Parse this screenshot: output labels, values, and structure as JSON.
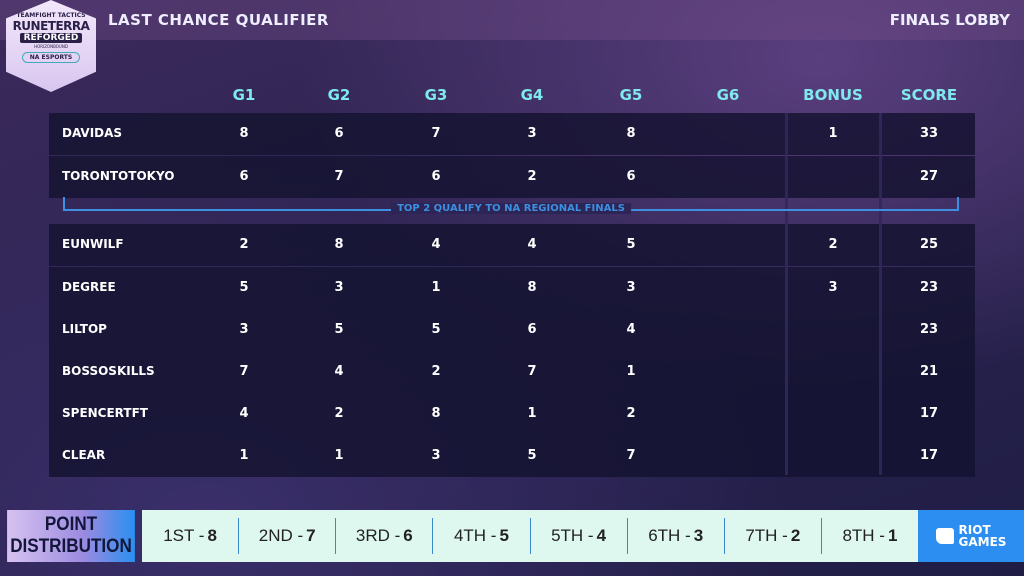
{
  "logo": {
    "line1": "TEAMFIGHT TACTICS",
    "line2": "RUNETERRA",
    "line3": "REFORGED",
    "line4": "HORIZONBOUND",
    "line5": "NA ESPORTS"
  },
  "header": {
    "title": "LAST CHANCE QUALIFIER",
    "lobby": "FINALS LOBBY"
  },
  "columns": [
    "G1",
    "G2",
    "G3",
    "G4",
    "G5",
    "G6",
    "BONUS",
    "SCORE"
  ],
  "rows": [
    {
      "name": "DAVIDAS",
      "g": [
        "8",
        "6",
        "7",
        "3",
        "8",
        ""
      ],
      "bonus": "1",
      "score": "33"
    },
    {
      "name": "TORONTOTOKYO",
      "g": [
        "6",
        "7",
        "6",
        "2",
        "6",
        ""
      ],
      "bonus": "",
      "score": "27"
    },
    {
      "name": "EUNWILF",
      "g": [
        "2",
        "8",
        "4",
        "4",
        "5",
        ""
      ],
      "bonus": "2",
      "score": "25"
    },
    {
      "name": "DEGREE",
      "g": [
        "5",
        "3",
        "1",
        "8",
        "3",
        ""
      ],
      "bonus": "3",
      "score": "23"
    },
    {
      "name": "LILTOP",
      "g": [
        "3",
        "5",
        "5",
        "6",
        "4",
        ""
      ],
      "bonus": "",
      "score": "23"
    },
    {
      "name": "BOSSOSKILLS",
      "g": [
        "7",
        "4",
        "2",
        "7",
        "1",
        ""
      ],
      "bonus": "",
      "score": "21"
    },
    {
      "name": "SPENCERTFT",
      "g": [
        "4",
        "2",
        "8",
        "1",
        "2",
        ""
      ],
      "bonus": "",
      "score": "17"
    },
    {
      "name": "CLEAR",
      "g": [
        "1",
        "1",
        "3",
        "5",
        "7",
        ""
      ],
      "bonus": "",
      "score": "17"
    }
  ],
  "qualify_text": "TOP 2 QUALIFY TO NA REGIONAL FINALS",
  "points": {
    "title_line1": "POINT",
    "title_line2": "DISTRIBUTION",
    "items": [
      {
        "place": "1ST -",
        "pts": "8"
      },
      {
        "place": "2ND -",
        "pts": "7"
      },
      {
        "place": "3RD -",
        "pts": "6"
      },
      {
        "place": "4TH -",
        "pts": "5"
      },
      {
        "place": "5TH -",
        "pts": "4"
      },
      {
        "place": "6TH -",
        "pts": "3"
      },
      {
        "place": "7TH -",
        "pts": "2"
      },
      {
        "place": "8TH -",
        "pts": "1"
      }
    ]
  },
  "sponsor": {
    "line1": "RIOT",
    "line2": "GAMES"
  },
  "colors": {
    "header_accent": "#7fe9ee",
    "qualify_line": "#3d8fe0",
    "riot_blue": "#2b8ef0"
  }
}
